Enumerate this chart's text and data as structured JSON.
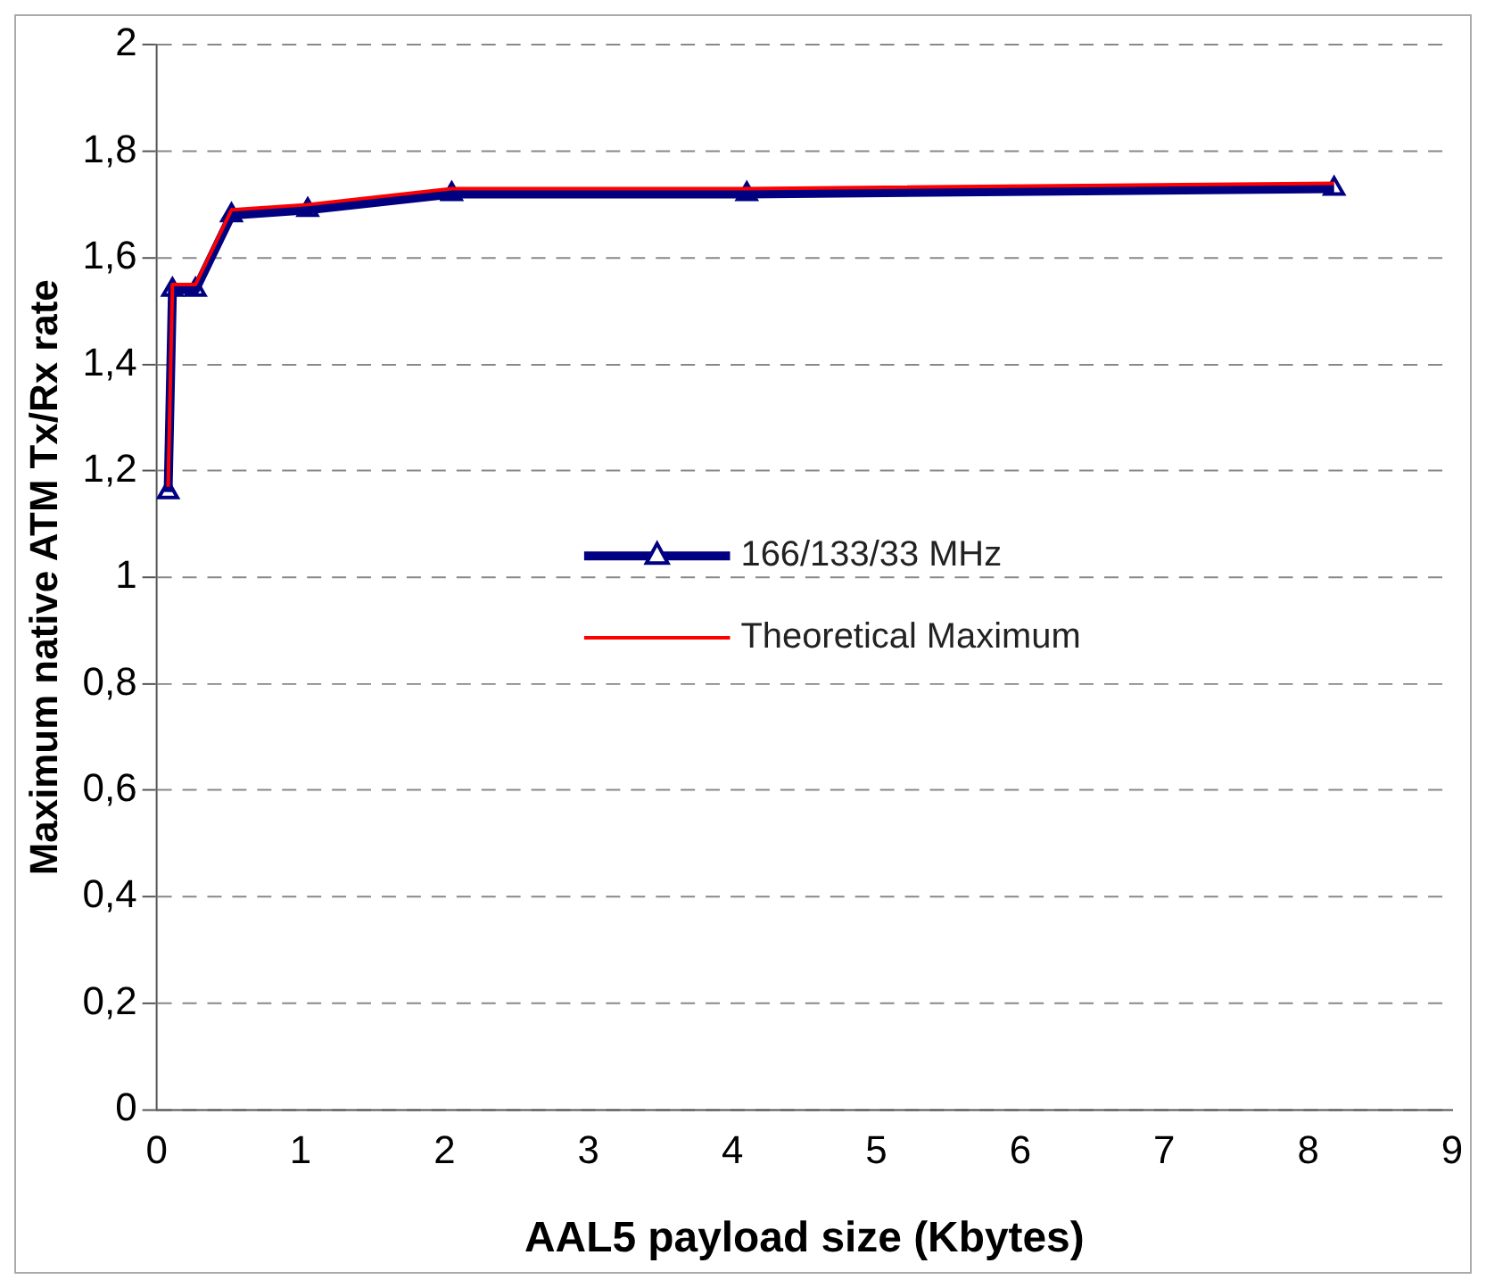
{
  "chart_data": {
    "type": "line",
    "xlabel": "AAL5 payload size (Kbytes)",
    "ylabel": "Maximum native ATM Tx/Rx rate",
    "x": [
      0.08,
      0.11,
      0.27,
      0.52,
      1.05,
      2.05,
      4.1,
      8.18
    ],
    "series": [
      {
        "name": "166/133/33 MHz",
        "color": "#000080",
        "values": [
          1.16,
          1.54,
          1.54,
          1.68,
          1.69,
          1.72,
          1.72,
          1.73
        ],
        "marker": "triangle"
      },
      {
        "name": "Theoretical Maximum",
        "color": "#ff0000",
        "values": [
          1.17,
          1.55,
          1.55,
          1.69,
          1.7,
          1.73,
          1.73,
          1.74
        ],
        "marker": "none"
      }
    ],
    "xlim": [
      0,
      9
    ],
    "xticks": [
      0,
      1,
      2,
      3,
      4,
      5,
      6,
      7,
      8,
      9
    ],
    "ylim": [
      0,
      2
    ],
    "yticks": [
      {
        "value": 0,
        "label": "0"
      },
      {
        "value": 0.2,
        "label": "0,2"
      },
      {
        "value": 0.4,
        "label": "0,4"
      },
      {
        "value": 0.6,
        "label": "0,6"
      },
      {
        "value": 0.8,
        "label": "0,8"
      },
      {
        "value": 1,
        "label": "1"
      },
      {
        "value": 1.2,
        "label": "1,2"
      },
      {
        "value": 1.4,
        "label": "1,4"
      },
      {
        "value": 1.6,
        "label": "1,6"
      },
      {
        "value": 1.8,
        "label": "1,8"
      },
      {
        "value": 2,
        "label": "2"
      }
    ],
    "grid": "y",
    "legend": "right"
  }
}
